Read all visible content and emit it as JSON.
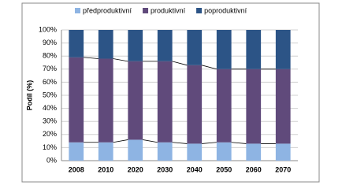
{
  "chart_data": {
    "type": "stacked_bar_100",
    "y_label": "Podíl (%)",
    "categories": [
      "2008",
      "2010",
      "2020",
      "2030",
      "2040",
      "2050",
      "2060",
      "2070"
    ],
    "series": [
      {
        "name": "předproduktivní",
        "color": "#8eb4e3",
        "values": [
          14,
          14,
          16,
          14,
          13,
          14,
          13,
          13
        ]
      },
      {
        "name": "produktivní",
        "color": "#604a7b",
        "values": [
          65,
          64,
          60,
          62,
          60,
          56,
          57,
          57
        ]
      },
      {
        "name": "poproduktivní",
        "color": "#2c5486",
        "values": [
          21,
          22,
          24,
          24,
          27,
          30,
          30,
          30
        ]
      }
    ],
    "ylim": [
      0,
      100
    ],
    "yticks": [
      {
        "value": 0,
        "label": "0%"
      },
      {
        "value": 10,
        "label": "10%"
      },
      {
        "value": 20,
        "label": "20%"
      },
      {
        "value": 30,
        "label": "30%"
      },
      {
        "value": 40,
        "label": "40%"
      },
      {
        "value": 50,
        "label": "50%"
      },
      {
        "value": 60,
        "label": "60%"
      },
      {
        "value": 70,
        "label": "70%"
      },
      {
        "value": 80,
        "label": "80%"
      },
      {
        "value": 90,
        "label": "90%"
      },
      {
        "value": 100,
        "label": "100%"
      }
    ],
    "grid": true,
    "legend": "top"
  }
}
